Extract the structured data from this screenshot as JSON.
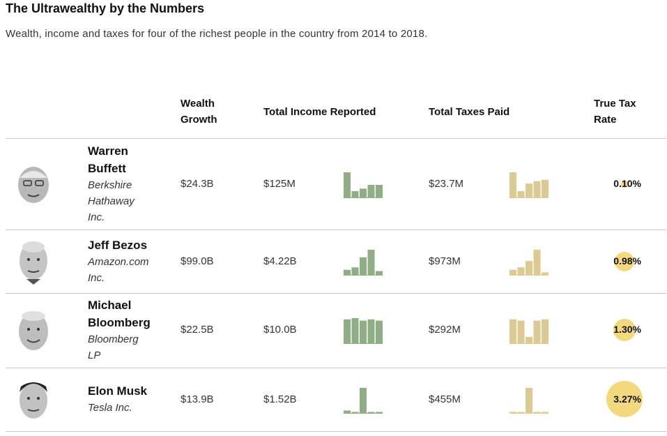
{
  "title": "The Ultrawealthy by the Numbers",
  "subtitle": "Wealth, income and taxes for four of the richest people in the country from 2014 to 2018.",
  "headers": {
    "wealth_1": "Wealth",
    "wealth_2": "Growth",
    "income": "Total Income Reported",
    "taxes": "Total Taxes Paid",
    "rate_1": "True Tax",
    "rate_2": "Rate"
  },
  "colors": {
    "income_bars": "#8fae86",
    "tax_bars": "#ddc992",
    "rate_circle": "#f3d97e"
  },
  "rows": [
    {
      "name_1": "Warren",
      "name_2": "Buffett",
      "company_1": "Berkshire",
      "company_2": "Hathaway",
      "company_3": "Inc.",
      "wealth": "$24.3B",
      "income": "$125M",
      "taxes": "$23.7M",
      "rate": "0.10%"
    },
    {
      "name_1": "Jeff Bezos",
      "company_1": "Amazon.com",
      "company_2": "Inc.",
      "wealth": "$99.0B",
      "income": "$4.22B",
      "taxes": "$973M",
      "rate": "0.98%"
    },
    {
      "name_1": "Michael",
      "name_2": "Bloomberg",
      "company_1": "Bloomberg",
      "company_2": "LP",
      "wealth": "$22.5B",
      "income": "$10.0B",
      "taxes": "$292M",
      "rate": "1.30%"
    },
    {
      "name_1": "Elon Musk",
      "company_1": "Tesla Inc.",
      "wealth": "$13.9B",
      "income": "$1.52B",
      "taxes": "$455M",
      "rate": "3.27%"
    }
  ],
  "chart_data": {
    "type": "table",
    "columns": [
      "Wealth Growth",
      "Total Income Reported",
      "Total Taxes Paid",
      "True Tax Rate"
    ],
    "rate_values": [
      0.1,
      0.98,
      1.3,
      3.27
    ],
    "sparklines": {
      "income": [
        [
          1.0,
          0.25,
          0.35,
          0.5,
          0.5
        ],
        [
          0.2,
          0.3,
          0.7,
          1.0,
          0.15
        ],
        [
          0.95,
          1.0,
          0.9,
          0.95,
          0.9
        ],
        [
          0.1,
          0.0,
          1.0,
          0.03,
          0.03
        ]
      ],
      "taxes": [
        [
          1.0,
          0.25,
          0.55,
          0.65,
          0.7
        ],
        [
          0.2,
          0.3,
          0.55,
          1.0,
          0.1
        ],
        [
          0.95,
          0.9,
          0.25,
          0.9,
          0.95
        ],
        [
          0.04,
          0.04,
          1.0,
          0.04,
          0.04
        ]
      ]
    }
  }
}
